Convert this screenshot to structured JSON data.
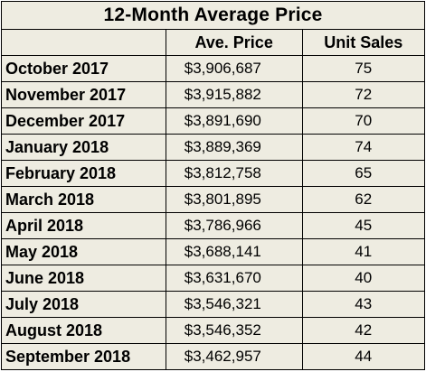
{
  "table": {
    "title": "12-Month Average Price",
    "headers": [
      "",
      "Ave. Price",
      "Unit Sales"
    ],
    "rows": [
      {
        "month": "October 2017",
        "price": "$3,906,687",
        "units": "75"
      },
      {
        "month": "November 2017",
        "price": "$3,915,882",
        "units": "72"
      },
      {
        "month": "December 2017",
        "price": "$3,891,690",
        "units": "70"
      },
      {
        "month": "January 2018",
        "price": "$3,889,369",
        "units": "74"
      },
      {
        "month": "February 2018",
        "price": "$3,812,758",
        "units": "65"
      },
      {
        "month": "March 2018",
        "price": "$3,801,895",
        "units": "62"
      },
      {
        "month": "April 2018",
        "price": "$3,786,966",
        "units": "45"
      },
      {
        "month": "May 2018",
        "price": "$3,688,141",
        "units": "41"
      },
      {
        "month": "June 2018",
        "price": "$3,631,670",
        "units": "40"
      },
      {
        "month": "July 2018",
        "price": "$3,546,321",
        "units": "43"
      },
      {
        "month": "August 2018",
        "price": "$3,546,352",
        "units": "42"
      },
      {
        "month": "September 2018",
        "price": "$3,462,957",
        "units": "44"
      }
    ]
  },
  "colors": {
    "cell_background": "#eeece1",
    "border": "#000000"
  }
}
